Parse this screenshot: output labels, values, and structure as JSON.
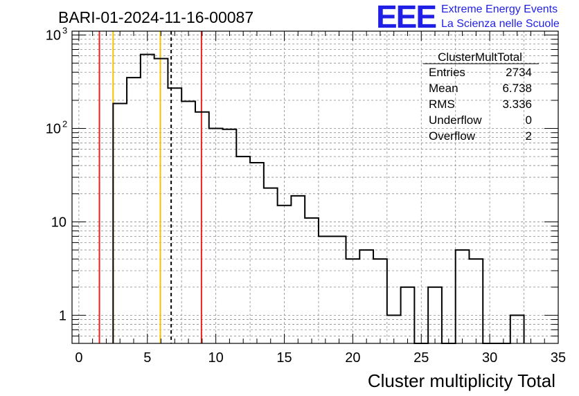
{
  "title": "BARI-01-2024-11-16-00087",
  "logo": {
    "text": "EEE",
    "line1": "Extreme Energy Events",
    "line2": "La Scienza nelle Scuole"
  },
  "stats": {
    "name": "ClusterMultTotal",
    "rows": [
      {
        "label": "Entries",
        "value": "2734"
      },
      {
        "label": "Mean",
        "value": "6.738"
      },
      {
        "label": "RMS",
        "value": "3.336"
      },
      {
        "label": "Underflow",
        "value": "0"
      },
      {
        "label": "Overflow",
        "value": "2"
      }
    ]
  },
  "colors": {
    "red_line": "#e8211b",
    "yellow_line": "#f5c400",
    "mean_line": "#000000",
    "logo": "#1f1fe6"
  },
  "chart_data": {
    "type": "histogram",
    "xlabel": "Cluster multiplicity Total",
    "ylabel": "",
    "xlim": [
      -0.5,
      35
    ],
    "ylim": [
      0.5,
      1100
    ],
    "yscale": "log",
    "grid": true,
    "bin_width": 1,
    "x_ticks": [
      0,
      5,
      10,
      15,
      20,
      25,
      30,
      35
    ],
    "y_ticks": [
      {
        "value": 1,
        "label": "1"
      },
      {
        "value": 10,
        "label": "10"
      },
      {
        "value": 100,
        "label": "10",
        "exp": "2"
      },
      {
        "value": 1000,
        "label": "10",
        "exp": "3"
      }
    ],
    "bins": [
      {
        "x": 3,
        "count": 185
      },
      {
        "x": 4,
        "count": 350
      },
      {
        "x": 5,
        "count": 620
      },
      {
        "x": 6,
        "count": 560
      },
      {
        "x": 7,
        "count": 270
      },
      {
        "x": 8,
        "count": 195
      },
      {
        "x": 9,
        "count": 150
      },
      {
        "x": 10,
        "count": 100
      },
      {
        "x": 11,
        "count": 98
      },
      {
        "x": 12,
        "count": 50
      },
      {
        "x": 13,
        "count": 43
      },
      {
        "x": 14,
        "count": 23
      },
      {
        "x": 15,
        "count": 15
      },
      {
        "x": 16,
        "count": 19
      },
      {
        "x": 17,
        "count": 11
      },
      {
        "x": 18,
        "count": 7
      },
      {
        "x": 19,
        "count": 7
      },
      {
        "x": 20,
        "count": 4
      },
      {
        "x": 21,
        "count": 5
      },
      {
        "x": 22,
        "count": 4
      },
      {
        "x": 23,
        "count": 1
      },
      {
        "x": 24,
        "count": 2
      },
      {
        "x": 25,
        "count": 0
      },
      {
        "x": 26,
        "count": 2
      },
      {
        "x": 27,
        "count": 0
      },
      {
        "x": 28,
        "count": 5
      },
      {
        "x": 29,
        "count": 4
      },
      {
        "x": 30,
        "count": 0
      },
      {
        "x": 31,
        "count": 0
      },
      {
        "x": 32,
        "count": 1
      }
    ],
    "vertical_lines": [
      {
        "name": "red-line-left",
        "x": 1.5,
        "color": "#e8211b",
        "style": "solid"
      },
      {
        "name": "yellow-line-left",
        "x": 2.5,
        "color": "#f5c400",
        "style": "solid"
      },
      {
        "name": "yellow-line-right",
        "x": 5.95,
        "color": "#f5c400",
        "style": "solid"
      },
      {
        "name": "mean-line",
        "x": 6.738,
        "color": "#000000",
        "style": "dashed"
      },
      {
        "name": "red-line-right",
        "x": 8.95,
        "color": "#e8211b",
        "style": "solid"
      }
    ]
  }
}
